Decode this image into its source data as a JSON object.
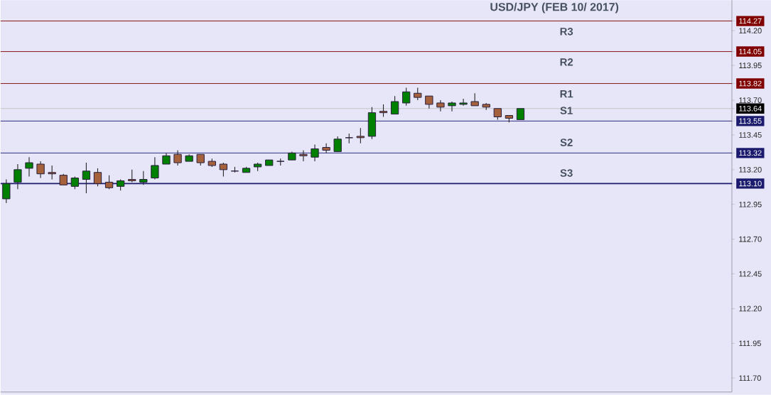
{
  "chart_data": {
    "type": "candlestick",
    "title": "USD/JPY (FEB 10/ 2017)",
    "categories": [
      null,
      null,
      null,
      null,
      null,
      null,
      null,
      null,
      null,
      null,
      null,
      null,
      null,
      null,
      null,
      null,
      null,
      null,
      null,
      null,
      null,
      null,
      null,
      null,
      null,
      null,
      null,
      null,
      null,
      null,
      null,
      null,
      null,
      null,
      null,
      null,
      null,
      null,
      null,
      null,
      null,
      null,
      null,
      null,
      null,
      null,
      null,
      null,
      null,
      null,
      null,
      null,
      null,
      null,
      null,
      null,
      null,
      null,
      null,
      null,
      null,
      null,
      null,
      null
    ],
    "ohlc": [
      [
        112.99,
        113.13,
        112.96,
        113.1
      ],
      [
        113.11,
        113.24,
        113.06,
        113.2
      ],
      [
        113.21,
        113.29,
        113.15,
        113.25
      ],
      [
        113.24,
        113.26,
        113.14,
        113.17
      ],
      [
        113.18,
        113.23,
        113.13,
        113.17
      ],
      [
        113.16,
        113.17,
        113.09,
        113.09
      ],
      [
        113.08,
        113.15,
        113.06,
        113.14
      ],
      [
        113.13,
        113.25,
        113.03,
        113.19
      ],
      [
        113.18,
        113.21,
        113.08,
        113.1
      ],
      [
        113.11,
        113.16,
        113.06,
        113.07
      ],
      [
        113.08,
        113.13,
        113.05,
        113.12
      ],
      [
        113.13,
        113.2,
        113.11,
        113.12
      ],
      [
        113.11,
        113.19,
        113.09,
        113.13
      ],
      [
        113.14,
        113.29,
        113.13,
        113.23
      ],
      [
        113.24,
        113.32,
        113.24,
        113.3
      ],
      [
        113.31,
        113.34,
        113.23,
        113.25
      ],
      [
        113.26,
        113.31,
        113.26,
        113.3
      ],
      [
        113.31,
        113.31,
        113.23,
        113.25
      ],
      [
        113.26,
        113.28,
        113.22,
        113.23
      ],
      [
        113.24,
        113.25,
        113.15,
        113.2
      ],
      [
        113.19,
        113.22,
        113.18,
        113.19
      ],
      [
        113.18,
        113.22,
        113.18,
        113.21
      ],
      [
        113.22,
        113.25,
        113.19,
        113.24
      ],
      [
        113.23,
        113.27,
        113.23,
        113.27
      ],
      [
        113.26,
        113.28,
        113.23,
        113.26
      ],
      [
        113.27,
        113.33,
        113.27,
        113.32
      ],
      [
        113.31,
        113.34,
        113.26,
        113.3
      ],
      [
        113.29,
        113.38,
        113.26,
        113.35
      ],
      [
        113.36,
        113.39,
        113.32,
        113.34
      ],
      [
        113.33,
        113.44,
        113.33,
        113.42
      ],
      [
        113.43,
        113.46,
        113.39,
        113.43
      ],
      [
        113.44,
        113.5,
        113.39,
        113.43
      ],
      [
        113.44,
        113.65,
        113.42,
        113.61
      ],
      [
        113.62,
        113.67,
        113.58,
        113.61
      ],
      [
        113.6,
        113.73,
        113.6,
        113.69
      ],
      [
        113.68,
        113.79,
        113.66,
        113.76
      ],
      [
        113.75,
        113.79,
        113.7,
        113.72
      ],
      [
        113.73,
        113.73,
        113.64,
        113.67
      ],
      [
        113.68,
        113.7,
        113.62,
        113.65
      ],
      [
        113.66,
        113.69,
        113.62,
        113.68
      ],
      [
        113.67,
        113.71,
        113.66,
        113.68
      ],
      [
        113.69,
        113.75,
        113.66,
        113.66
      ],
      [
        113.67,
        113.68,
        113.63,
        113.65
      ],
      [
        113.64,
        113.64,
        113.56,
        113.58
      ],
      [
        113.59,
        113.59,
        113.54,
        113.57
      ],
      [
        113.56,
        113.64,
        113.56,
        113.64
      ],
      null,
      null,
      null,
      null,
      null,
      null,
      null,
      null,
      null,
      null,
      null,
      null,
      null,
      null,
      null,
      null,
      null,
      null
    ],
    "colors": [
      "#008000",
      "#008000",
      "#008000",
      "#a5603c",
      "#a5603c",
      "#a5603c",
      "#008000",
      "#008000",
      "#a5603c",
      "#a5603c",
      "#008000",
      "#a5603c",
      "#008000",
      "#008000",
      "#008000",
      "#a5603c",
      "#008000",
      "#a5603c",
      "#a5603c",
      "#a5603c",
      "#281e3c",
      "#008000",
      "#008000",
      "#008000",
      "#281e3c",
      "#008000",
      "#a5603c",
      "#008000",
      "#a5603c",
      "#008000",
      "#281e3c",
      "#a5603c",
      "#008000",
      "#a5603c",
      "#008000",
      "#008000",
      "#a5603c",
      "#a5603c",
      "#a5603c",
      "#008000",
      "#008000",
      "#a5603c",
      "#a5603c",
      "#a5603c",
      "#a5603c",
      "#008000",
      null,
      null,
      null,
      null,
      null,
      null,
      null,
      null,
      null,
      null,
      null,
      null,
      null,
      null,
      null,
      null,
      null,
      null
    ],
    "ylim": [
      111.6,
      114.42
    ],
    "yticks": [
      {
        "value": 111.7,
        "label": "111.70"
      },
      {
        "value": 111.95,
        "label": "111.95"
      },
      {
        "value": 112.2,
        "label": "112.20"
      },
      {
        "value": 112.45,
        "label": "112.45"
      },
      {
        "value": 112.7,
        "label": "112.70"
      },
      {
        "value": 112.95,
        "label": "112.95"
      },
      {
        "value": 113.2,
        "label": "113.20"
      },
      {
        "value": 113.45,
        "label": "113.45"
      },
      {
        "value": 113.7,
        "label": "113.70"
      },
      {
        "value": 113.95,
        "label": "113.95"
      },
      {
        "value": 114.2,
        "label": "114.20"
      },
      {
        "value": 114.27,
        "label": "114.27"
      },
      {
        "value": 114.05,
        "label": "114.05"
      },
      {
        "value": 113.82,
        "label": "113.82"
      },
      113.64,
      {
        "value": 113.55,
        "label": "113.55"
      },
      {
        "value": 113.32,
        "label": "113.32"
      },
      {
        "value": 113.1,
        "label": "113.10"
      }
    ],
    "ref_lines": [
      {
        "axis": "y",
        "value": 114.27,
        "label": "R3",
        "color": "#800000"
      },
      {
        "axis": "y",
        "value": 114.05,
        "label": "R2",
        "color": "#800000"
      },
      {
        "axis": "y",
        "value": 113.82,
        "label": "R1",
        "color": "#800000"
      },
      {
        "axis": "y",
        "value": 113.64,
        "color": "#c0c0c0"
      },
      {
        "axis": "y",
        "value": 113.55,
        "label": "S1",
        "color": "#1a1a6e"
      },
      {
        "axis": "y",
        "value": 113.32,
        "label": "S2",
        "color": "#1a1a6e"
      },
      {
        "axis": "y",
        "value": 113.1,
        "label": "S3",
        "color": "#1a1a6e"
      }
    ],
    "grid": false
  }
}
